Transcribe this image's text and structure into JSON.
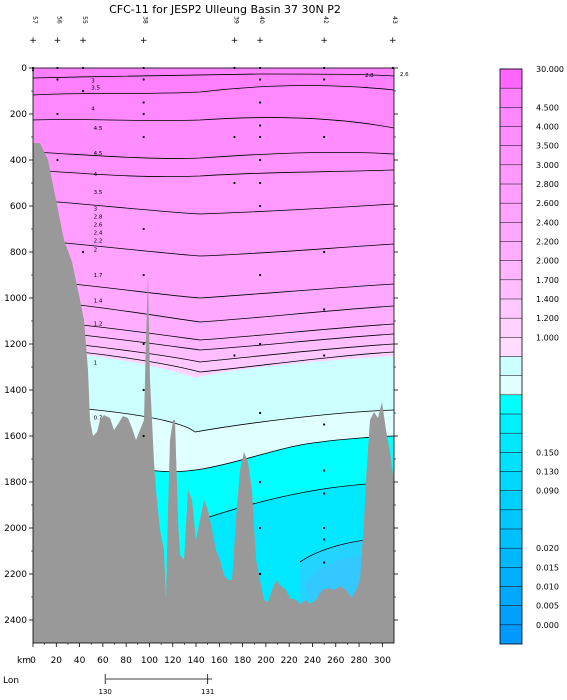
{
  "chart_data": {
    "type": "area",
    "title": "CFC-11 for JESP2 Ulleung Basin 37 30N P2",
    "x_axis": {
      "label": "km",
      "range": [
        0,
        310
      ],
      "ticks": [
        0,
        20,
        40,
        60,
        80,
        100,
        120,
        140,
        160,
        180,
        200,
        220,
        240,
        260,
        280,
        300
      ]
    },
    "y_axis": {
      "range": [
        0,
        2500
      ],
      "ticks": [
        0,
        200,
        400,
        600,
        800,
        1000,
        1200,
        1400,
        1600,
        1800,
        2000,
        2200,
        2400
      ]
    },
    "lon_axis": {
      "label": "Lon",
      "ticks": [
        {
          "km": 62,
          "label": "130"
        },
        {
          "km": 150,
          "label": "131"
        }
      ]
    },
    "stations": [
      {
        "km": 0,
        "label": "57"
      },
      {
        "km": 21,
        "label": "56"
      },
      {
        "km": 43,
        "label": "55"
      },
      {
        "km": 95,
        "label": "38"
      },
      {
        "km": 173,
        "label": "39"
      },
      {
        "km": 195,
        "label": "40"
      },
      {
        "km": 250,
        "label": "42"
      },
      {
        "km": 309,
        "label": "43"
      }
    ],
    "contour_levels": [
      {
        "value": 30.0,
        "label": "30.000",
        "color": "#ff66ff"
      },
      {
        "value": 5.0,
        "label": "",
        "color": "#ff80ff"
      },
      {
        "value": 4.5,
        "label": "4.500",
        "color": "#ff88ff"
      },
      {
        "value": 4.0,
        "label": "4.000",
        "color": "#ff8dff"
      },
      {
        "value": 3.5,
        "label": "3.500",
        "color": "#ff93ff"
      },
      {
        "value": 3.0,
        "label": "3.000",
        "color": "#ff99ff"
      },
      {
        "value": 2.8,
        "label": "2.800",
        "color": "#ff9eff"
      },
      {
        "value": 2.6,
        "label": "2.600",
        "color": "#ffa3ff"
      },
      {
        "value": 2.4,
        "label": "2.400",
        "color": "#ffa8ff"
      },
      {
        "value": 2.2,
        "label": "2.200",
        "color": "#ffaeff"
      },
      {
        "value": 2.0,
        "label": "2.000",
        "color": "#ffb5ff"
      },
      {
        "value": 1.7,
        "label": "1.700",
        "color": "#ffbeff"
      },
      {
        "value": 1.4,
        "label": "1.400",
        "color": "#ffc8ff"
      },
      {
        "value": 1.2,
        "label": "1.200",
        "color": "#ffd2ff"
      },
      {
        "value": 1.0,
        "label": "1.000",
        "color": "#ffdcff"
      },
      {
        "value": 0.8,
        "label": "",
        "color": "#ccffff"
      },
      {
        "value": 0.6,
        "label": "",
        "color": "#e0ffff"
      },
      {
        "value": 0.4,
        "label": "",
        "color": "#00ffff"
      },
      {
        "value": 0.3,
        "label": "",
        "color": "#00f0ff"
      },
      {
        "value": 0.2,
        "label": "",
        "color": "#00e8ff"
      },
      {
        "value": 0.15,
        "label": "0.150",
        "color": "#00e0ff"
      },
      {
        "value": 0.13,
        "label": "0.130",
        "color": "#00d8ff"
      },
      {
        "value": 0.09,
        "label": "0.090",
        "color": "#00d0ff"
      },
      {
        "value": 0.06,
        "label": "",
        "color": "#00c8ff"
      },
      {
        "value": 0.04,
        "label": "",
        "color": "#00c0ff"
      },
      {
        "value": 0.02,
        "label": "0.020",
        "color": "#00b8ff"
      },
      {
        "value": 0.015,
        "label": "0.015",
        "color": "#00b0ff"
      },
      {
        "value": 0.01,
        "label": "0.010",
        "color": "#00a8ff"
      },
      {
        "value": 0.005,
        "label": "0.005",
        "color": "#00a0ff"
      },
      {
        "value": 0.0,
        "label": "0.000",
        "color": "#0099ff"
      }
    ],
    "contour_labels": [
      {
        "km": 20,
        "depth": 55,
        "text": "3"
      },
      {
        "km": 20,
        "depth": 85,
        "text": "3.5"
      },
      {
        "km": 20,
        "depth": 175,
        "text": "4"
      },
      {
        "km": 22,
        "depth": 260,
        "text": "4.5"
      },
      {
        "km": 22,
        "depth": 370,
        "text": "4.5"
      },
      {
        "km": 22,
        "depth": 460,
        "text": "4"
      },
      {
        "km": 22,
        "depth": 540,
        "text": "3.5"
      },
      {
        "km": 22,
        "depth": 610,
        "text": "3"
      },
      {
        "km": 22,
        "depth": 645,
        "text": "2.8"
      },
      {
        "km": 22,
        "depth": 680,
        "text": "2.6"
      },
      {
        "km": 22,
        "depth": 715,
        "text": "2.4"
      },
      {
        "km": 22,
        "depth": 750,
        "text": "2.2"
      },
      {
        "km": 22,
        "depth": 790,
        "text": "2"
      },
      {
        "km": 22,
        "depth": 900,
        "text": "1.7"
      },
      {
        "km": 22,
        "depth": 1010,
        "text": "1.4"
      },
      {
        "km": 22,
        "depth": 1110,
        "text": "1.2"
      },
      {
        "km": 22,
        "depth": 1280,
        "text": "1"
      },
      {
        "km": 22,
        "depth": 1520,
        "text": "0.7"
      },
      {
        "km": 255,
        "depth": 30,
        "text": "2.8"
      },
      {
        "km": 285,
        "depth": 25,
        "text": "2.6"
      }
    ],
    "sections_fill": {
      "upper": "#ff99ff",
      "cyan": "#ccffff",
      "deep": "#00e8ff",
      "deepest": "#33ccff",
      "bottom": "#999999"
    },
    "grid": false,
    "legend": "right"
  }
}
